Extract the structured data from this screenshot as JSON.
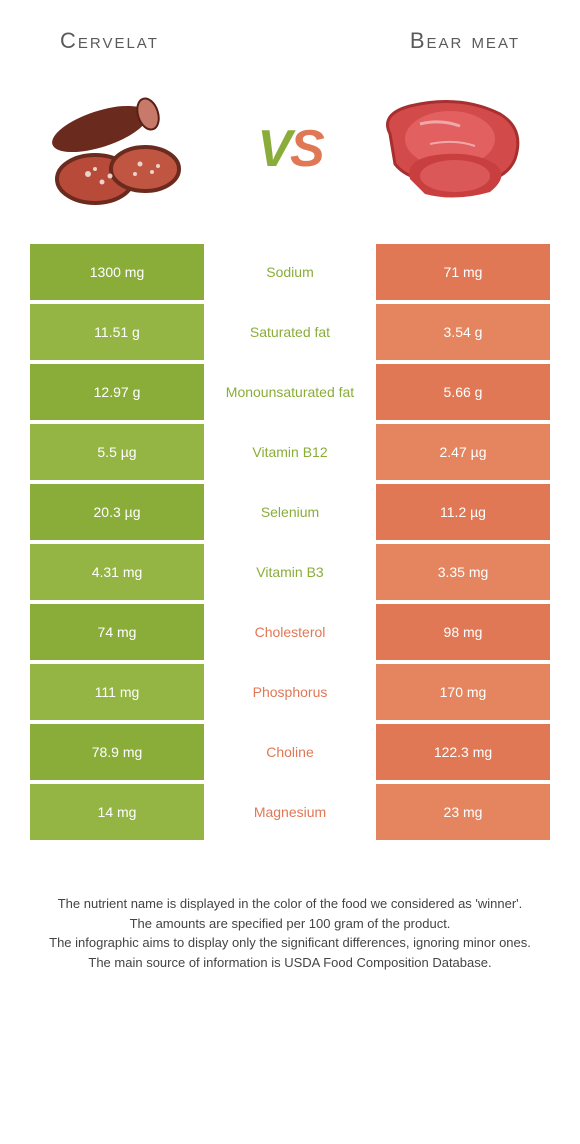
{
  "header": {
    "left_title": "Cervelat",
    "right_title": "Bear meat"
  },
  "vs": {
    "v": "V",
    "s": "S"
  },
  "colors": {
    "left_bg": "#8aad3a",
    "left_bg_alt": "#94b544",
    "right_bg": "#e07856",
    "right_bg_alt": "#e5855f",
    "mid_left_text": "#8aad3a",
    "mid_right_text": "#e07856"
  },
  "table": {
    "rows": [
      {
        "left": "1300 mg",
        "mid": "Sodium",
        "right": "71 mg",
        "winner": "left"
      },
      {
        "left": "11.51 g",
        "mid": "Saturated fat",
        "right": "3.54 g",
        "winner": "left"
      },
      {
        "left": "12.97 g",
        "mid": "Monounsaturated fat",
        "right": "5.66 g",
        "winner": "left"
      },
      {
        "left": "5.5 µg",
        "mid": "Vitamin B12",
        "right": "2.47 µg",
        "winner": "left"
      },
      {
        "left": "20.3 µg",
        "mid": "Selenium",
        "right": "11.2 µg",
        "winner": "left"
      },
      {
        "left": "4.31 mg",
        "mid": "Vitamin B3",
        "right": "3.35 mg",
        "winner": "left"
      },
      {
        "left": "74 mg",
        "mid": "Cholesterol",
        "right": "98 mg",
        "winner": "right"
      },
      {
        "left": "111 mg",
        "mid": "Phosphorus",
        "right": "170 mg",
        "winner": "right"
      },
      {
        "left": "78.9 mg",
        "mid": "Choline",
        "right": "122.3 mg",
        "winner": "right"
      },
      {
        "left": "14 mg",
        "mid": "Magnesium",
        "right": "23 mg",
        "winner": "right"
      }
    ]
  },
  "footer": {
    "line1": "The nutrient name is displayed in the color of the food we considered as 'winner'.",
    "line2": "The amounts are specified per 100 gram of the product.",
    "line3": "The infographic aims to display only the significant differences, ignoring minor ones.",
    "line4": "The main source of information is USDA Food Composition Database."
  }
}
